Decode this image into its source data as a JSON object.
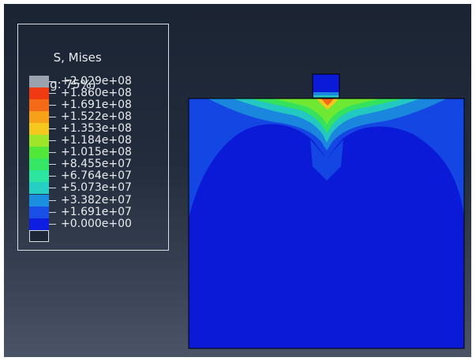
{
  "legend": {
    "title_line1": "S, Mises",
    "title_line2": "(Avg: 75%)",
    "levels": [
      {
        "label": "+2.029e+08",
        "color": "#9aa3ad"
      },
      {
        "label": "+1.860e+08",
        "color": "#f23a12"
      },
      {
        "label": "+1.691e+08",
        "color": "#f46a16"
      },
      {
        "label": "+1.522e+08",
        "color": "#f7a01a"
      },
      {
        "label": "+1.353e+08",
        "color": "#f5c81e"
      },
      {
        "label": "+1.184e+08",
        "color": "#9ee62a"
      },
      {
        "label": "+1.015e+08",
        "color": "#52e83a"
      },
      {
        "label": "+8.455e+07",
        "color": "#34e866"
      },
      {
        "label": "+6.764e+07",
        "color": "#2ce6a0"
      },
      {
        "label": "+5.073e+07",
        "color": "#25cfc4"
      },
      {
        "label": "+3.382e+07",
        "color": "#1a8fe0"
      },
      {
        "label": "+1.691e+07",
        "color": "#1a4fe6"
      },
      {
        "label": "+0.000e+00",
        "color": "#0d1ee0"
      }
    ]
  },
  "model": {
    "base_color": "#0a1ad6",
    "outline_color": "#000000"
  }
}
